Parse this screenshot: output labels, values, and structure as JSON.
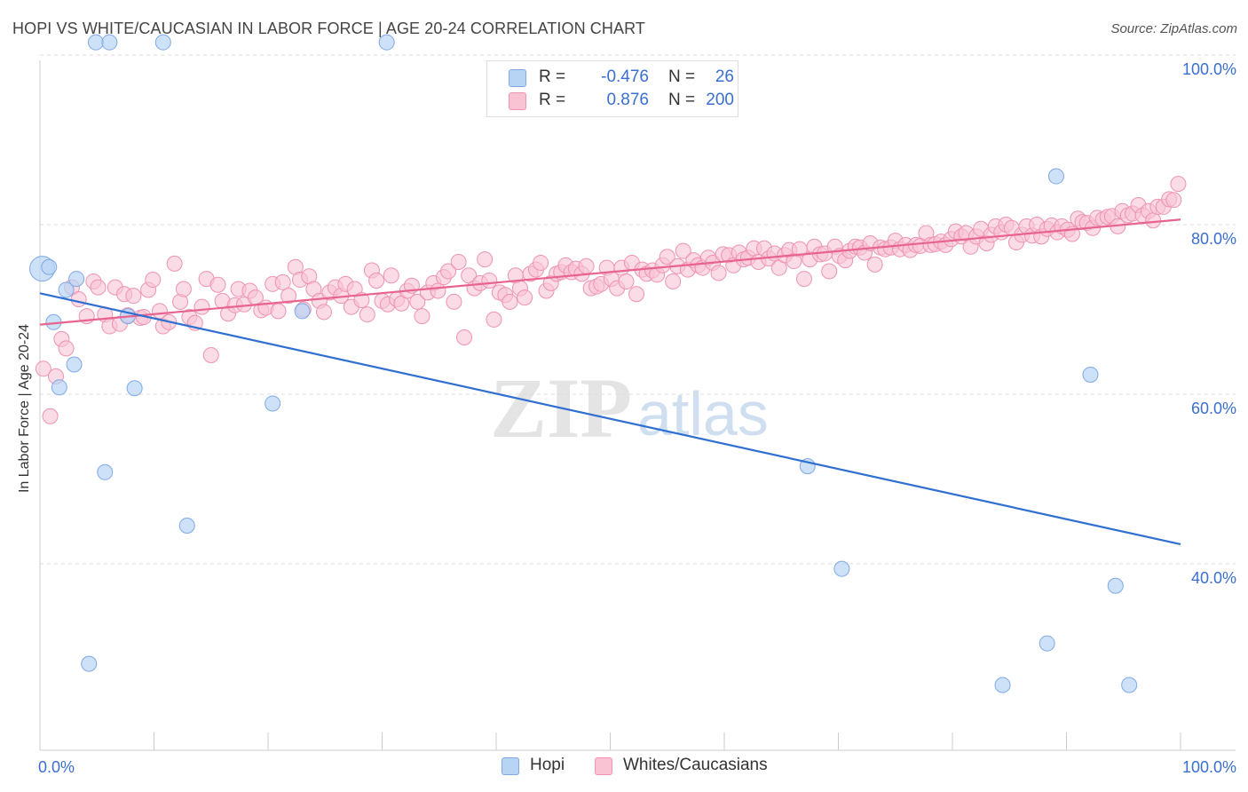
{
  "title": "HOPI VS WHITE/CAUCASIAN IN LABOR FORCE | AGE 20-24 CORRELATION CHART",
  "source": "Source: ZipAtlas.com",
  "watermark": {
    "zip": "ZIP",
    "atlas": "atlas"
  },
  "colors": {
    "hopi_fill": "#b8d4f5",
    "hopi_stroke": "#7fa9e6",
    "hopi_line": "#2e6fd0",
    "white_fill": "#f9c3d4",
    "white_stroke": "#ee93b2",
    "white_line": "#e8648e",
    "tick_text": "#3a6fd0"
  },
  "legend_top": {
    "rows": [
      {
        "r_label": "R =",
        "r_value": "-0.476",
        "n_label": "N =",
        "n_value": "26"
      },
      {
        "r_label": "R =",
        "r_value": "0.876",
        "n_label": "N =",
        "n_value": "200"
      }
    ]
  },
  "legend_bottom": [
    "Hopi",
    "Whites/Caucasians"
  ],
  "chart_data": {
    "type": "scatter",
    "xlabel": "",
    "ylabel": "In Labor Force | Age 20-24",
    "xlim": [
      0,
      100
    ],
    "ylim": [
      18,
      100
    ],
    "x_tick_labels": [
      {
        "value": 0,
        "label": "0.0%"
      },
      {
        "value": 100,
        "label": "100.0%"
      }
    ],
    "y_tick_labels": [
      {
        "value": 100,
        "label": "100.0%"
      },
      {
        "value": 80,
        "label": "80.0%"
      },
      {
        "value": 60,
        "label": "60.0%"
      },
      {
        "value": 40,
        "label": "40.0%"
      }
    ],
    "y_gridlines": [
      100,
      80,
      60,
      40
    ],
    "legend_position": "top-center",
    "series": [
      {
        "name": "Hopi",
        "points": [
          [
            0.2,
            74.8
          ],
          [
            0.8,
            75.0
          ],
          [
            1.2,
            68.5
          ],
          [
            1.7,
            60.8
          ],
          [
            2.3,
            72.3
          ],
          [
            3.0,
            63.5
          ],
          [
            3.2,
            73.6
          ],
          [
            4.3,
            28.2
          ],
          [
            4.9,
            101.5
          ],
          [
            5.7,
            50.8
          ],
          [
            6.1,
            101.5
          ],
          [
            7.7,
            69.2
          ],
          [
            8.3,
            60.7
          ],
          [
            10.8,
            101.5
          ],
          [
            12.9,
            44.5
          ],
          [
            20.4,
            58.9
          ],
          [
            23.0,
            69.8
          ],
          [
            30.4,
            101.5
          ],
          [
            67.3,
            51.5
          ],
          [
            70.3,
            39.4
          ],
          [
            84.4,
            25.7
          ],
          [
            88.3,
            30.6
          ],
          [
            89.1,
            85.7
          ],
          [
            92.1,
            62.3
          ],
          [
            94.3,
            37.4
          ],
          [
            95.5,
            25.7
          ]
        ],
        "trend": {
          "x": [
            0,
            100
          ],
          "y": [
            71.9,
            42.3
          ]
        }
      },
      {
        "name": "Whites/Caucasians",
        "points": [
          [
            0.3,
            63.0
          ],
          [
            0.9,
            57.4
          ],
          [
            1.4,
            62.1
          ],
          [
            1.9,
            66.5
          ],
          [
            2.3,
            65.4
          ],
          [
            2.8,
            72.6
          ],
          [
            3.4,
            71.2
          ],
          [
            4.1,
            69.2
          ],
          [
            4.7,
            73.3
          ],
          [
            5.1,
            72.6
          ],
          [
            5.7,
            69.4
          ],
          [
            6.1,
            68.0
          ],
          [
            6.6,
            72.6
          ],
          [
            7.0,
            68.3
          ],
          [
            7.4,
            71.8
          ],
          [
            7.7,
            69.3
          ],
          [
            8.2,
            71.6
          ],
          [
            8.8,
            69.0
          ],
          [
            9.1,
            69.1
          ],
          [
            9.5,
            72.3
          ],
          [
            9.9,
            73.5
          ],
          [
            10.5,
            69.8
          ],
          [
            10.8,
            68.0
          ],
          [
            11.3,
            68.5
          ],
          [
            11.8,
            75.4
          ],
          [
            12.3,
            70.9
          ],
          [
            12.6,
            72.4
          ],
          [
            13.1,
            69.1
          ],
          [
            13.6,
            68.4
          ],
          [
            14.2,
            70.3
          ],
          [
            14.6,
            73.6
          ],
          [
            15.0,
            64.6
          ],
          [
            15.6,
            72.9
          ],
          [
            16.0,
            71.0
          ],
          [
            16.5,
            69.5
          ],
          [
            17.1,
            70.5
          ],
          [
            17.4,
            72.4
          ],
          [
            17.9,
            70.6
          ],
          [
            18.4,
            72.2
          ],
          [
            18.9,
            71.4
          ],
          [
            19.4,
            69.9
          ],
          [
            19.8,
            70.2
          ],
          [
            20.4,
            73.0
          ],
          [
            20.9,
            69.8
          ],
          [
            21.3,
            73.2
          ],
          [
            21.8,
            71.6
          ],
          [
            22.4,
            75.0
          ],
          [
            22.8,
            73.5
          ],
          [
            23.1,
            70.0
          ],
          [
            23.6,
            73.9
          ],
          [
            24.0,
            72.4
          ],
          [
            24.5,
            71.0
          ],
          [
            24.9,
            69.7
          ],
          [
            25.4,
            72.0
          ],
          [
            25.9,
            72.6
          ],
          [
            26.4,
            71.6
          ],
          [
            26.8,
            73.0
          ],
          [
            27.3,
            70.3
          ],
          [
            27.6,
            72.4
          ],
          [
            28.2,
            71.1
          ],
          [
            28.7,
            69.4
          ],
          [
            29.1,
            74.6
          ],
          [
            29.5,
            73.4
          ],
          [
            30.0,
            71.0
          ],
          [
            30.5,
            70.6
          ],
          [
            30.8,
            74.0
          ],
          [
            31.3,
            71.2
          ],
          [
            31.7,
            70.7
          ],
          [
            32.2,
            72.2
          ],
          [
            32.6,
            72.8
          ],
          [
            33.1,
            70.9
          ],
          [
            33.5,
            69.2
          ],
          [
            34.0,
            72.0
          ],
          [
            34.5,
            73.1
          ],
          [
            34.9,
            72.2
          ],
          [
            35.4,
            73.8
          ],
          [
            35.8,
            74.5
          ],
          [
            36.3,
            70.9
          ],
          [
            36.7,
            75.6
          ],
          [
            37.2,
            66.7
          ],
          [
            37.6,
            74.0
          ],
          [
            38.1,
            72.5
          ],
          [
            38.6,
            73.1
          ],
          [
            39.0,
            75.9
          ],
          [
            39.4,
            73.4
          ],
          [
            39.8,
            68.8
          ],
          [
            40.3,
            72.0
          ],
          [
            40.8,
            71.7
          ],
          [
            41.2,
            70.9
          ],
          [
            41.7,
            74.0
          ],
          [
            42.1,
            72.5
          ],
          [
            42.5,
            71.4
          ],
          [
            43.0,
            74.2
          ],
          [
            43.5,
            74.7
          ],
          [
            43.9,
            75.5
          ],
          [
            44.4,
            72.2
          ],
          [
            44.8,
            73.1
          ],
          [
            45.3,
            74.2
          ],
          [
            45.7,
            74.4
          ],
          [
            46.1,
            75.2
          ],
          [
            46.6,
            74.4
          ],
          [
            47.0,
            74.8
          ],
          [
            47.5,
            74.2
          ],
          [
            47.9,
            75.1
          ],
          [
            48.3,
            72.5
          ],
          [
            48.8,
            72.7
          ],
          [
            49.2,
            73.0
          ],
          [
            49.7,
            74.9
          ],
          [
            50.1,
            73.6
          ],
          [
            50.6,
            72.5
          ],
          [
            51.0,
            74.9
          ],
          [
            51.4,
            73.3
          ],
          [
            51.9,
            75.5
          ],
          [
            52.3,
            71.8
          ],
          [
            52.8,
            74.7
          ],
          [
            53.2,
            74.2
          ],
          [
            53.7,
            74.6
          ],
          [
            54.1,
            74.1
          ],
          [
            54.6,
            75.2
          ],
          [
            55.0,
            76.2
          ],
          [
            55.5,
            73.3
          ],
          [
            55.9,
            75.1
          ],
          [
            56.4,
            76.9
          ],
          [
            56.8,
            74.7
          ],
          [
            57.3,
            75.8
          ],
          [
            57.7,
            75.2
          ],
          [
            58.1,
            74.9
          ],
          [
            58.6,
            76.1
          ],
          [
            59.0,
            75.5
          ],
          [
            59.5,
            74.3
          ],
          [
            59.9,
            76.5
          ],
          [
            60.4,
            76.4
          ],
          [
            60.8,
            75.2
          ],
          [
            61.3,
            76.7
          ],
          [
            61.7,
            75.9
          ],
          [
            62.1,
            76.1
          ],
          [
            62.6,
            77.2
          ],
          [
            63.0,
            75.6
          ],
          [
            63.5,
            77.2
          ],
          [
            63.9,
            76.0
          ],
          [
            64.4,
            76.6
          ],
          [
            64.8,
            74.9
          ],
          [
            65.3,
            76.4
          ],
          [
            65.7,
            77.0
          ],
          [
            66.1,
            75.7
          ],
          [
            66.6,
            77.1
          ],
          [
            67.0,
            73.6
          ],
          [
            67.5,
            75.9
          ],
          [
            67.9,
            77.4
          ],
          [
            68.4,
            76.5
          ],
          [
            68.8,
            76.6
          ],
          [
            69.2,
            74.5
          ],
          [
            69.7,
            77.4
          ],
          [
            70.1,
            76.3
          ],
          [
            70.6,
            75.8
          ],
          [
            71.0,
            76.9
          ],
          [
            71.5,
            77.4
          ],
          [
            71.9,
            77.3
          ],
          [
            72.3,
            76.7
          ],
          [
            72.8,
            77.8
          ],
          [
            73.2,
            75.3
          ],
          [
            73.7,
            77.3
          ],
          [
            74.1,
            77.1
          ],
          [
            74.6,
            77.3
          ],
          [
            75.0,
            78.1
          ],
          [
            75.4,
            77.1
          ],
          [
            75.9,
            77.6
          ],
          [
            76.3,
            77.0
          ],
          [
            76.8,
            77.6
          ],
          [
            77.2,
            77.5
          ],
          [
            77.7,
            79.0
          ],
          [
            78.1,
            77.6
          ],
          [
            78.5,
            77.7
          ],
          [
            79.0,
            78.0
          ],
          [
            79.4,
            77.6
          ],
          [
            79.9,
            78.3
          ],
          [
            80.3,
            79.2
          ],
          [
            80.8,
            78.6
          ],
          [
            81.2,
            79.0
          ],
          [
            81.6,
            77.4
          ],
          [
            82.1,
            78.6
          ],
          [
            82.5,
            79.5
          ],
          [
            83.0,
            77.8
          ],
          [
            83.4,
            78.8
          ],
          [
            83.8,
            79.8
          ],
          [
            84.3,
            79.1
          ],
          [
            84.7,
            80.0
          ],
          [
            85.2,
            79.6
          ],
          [
            85.6,
            77.9
          ],
          [
            86.1,
            78.8
          ],
          [
            86.5,
            79.8
          ],
          [
            87.0,
            78.7
          ],
          [
            87.4,
            80.0
          ],
          [
            87.8,
            78.6
          ],
          [
            88.3,
            79.5
          ],
          [
            88.7,
            79.9
          ],
          [
            89.2,
            79.1
          ],
          [
            89.6,
            79.8
          ],
          [
            90.1,
            79.4
          ],
          [
            90.5,
            78.9
          ],
          [
            91.0,
            80.7
          ],
          [
            91.4,
            80.3
          ],
          [
            91.8,
            80.2
          ],
          [
            92.3,
            79.6
          ],
          [
            92.7,
            80.8
          ],
          [
            93.2,
            80.6
          ],
          [
            93.6,
            80.9
          ],
          [
            94.0,
            81.0
          ],
          [
            94.5,
            79.8
          ],
          [
            94.9,
            81.6
          ],
          [
            95.4,
            81.1
          ],
          [
            95.8,
            81.3
          ],
          [
            96.3,
            82.3
          ],
          [
            96.7,
            81.1
          ],
          [
            97.2,
            81.6
          ],
          [
            97.6,
            80.5
          ],
          [
            98.0,
            82.1
          ],
          [
            98.5,
            82.1
          ],
          [
            99.0,
            83.0
          ],
          [
            99.4,
            82.9
          ],
          [
            99.8,
            84.8
          ]
        ],
        "trend": {
          "x": [
            0,
            100
          ],
          "y": [
            68.2,
            80.6
          ]
        }
      }
    ]
  }
}
